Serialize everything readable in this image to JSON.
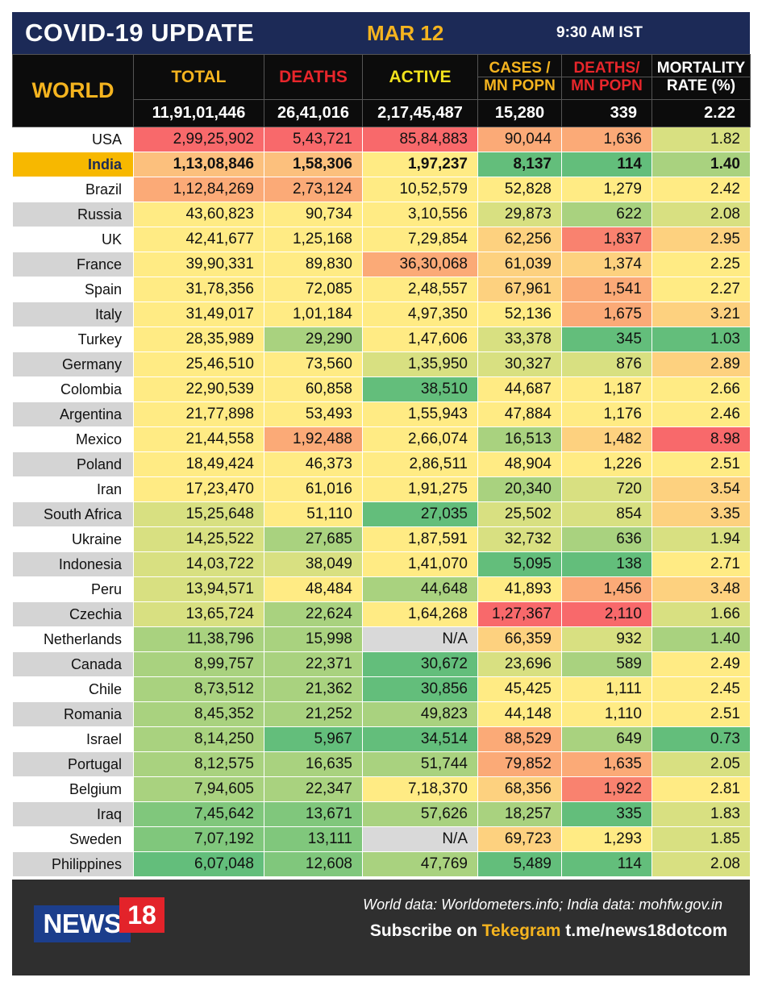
{
  "header": {
    "title": "COVID-19 UPDATE",
    "date": "MAR 12",
    "time": "9:30 AM IST"
  },
  "columns": {
    "region": "WORLD",
    "total": "TOTAL",
    "deaths": "DEATHS",
    "active": "ACTIVE",
    "cases_mn_l1": "CASES /",
    "cases_mn_l2": "MN POPN",
    "deaths_mn_l1": "DEATHS/",
    "deaths_mn_l2": "MN POPN",
    "mortality_l1": "MORTALITY",
    "mortality_l2": "RATE (%)"
  },
  "world": {
    "total": "11,91,01,446",
    "deaths": "26,41,016",
    "active": "2,17,45,487",
    "cases_mn": "15,280",
    "deaths_mn": "339",
    "mortality": "2.22"
  },
  "colors": {
    "red": "#f8696b",
    "orange": "#fbaa77",
    "yellow": "#ffeb84",
    "lime": "#d8e081",
    "lightgreen": "#a3d07f",
    "green": "#63be7b",
    "na": "#d9d9d9",
    "india_highlight": "#f7b800",
    "title_bg": "#1c2a57"
  },
  "rows": [
    {
      "country": "USA",
      "total": "2,99,25,902",
      "deaths": "5,43,721",
      "active": "85,84,883",
      "cases_mn": "90,044",
      "deaths_mn": "1,636",
      "mortality": "1.82",
      "c": [
        "red",
        "red",
        "red",
        "orange",
        "orange",
        "lime"
      ]
    },
    {
      "country": "India",
      "total": "1,13,08,846",
      "deaths": "1,58,306",
      "active": "1,97,237",
      "cases_mn": "8,137",
      "deaths_mn": "114",
      "mortality": "1.40",
      "c": [
        "orange2",
        "orange2",
        "yellow",
        "green",
        "green",
        "lightgreen"
      ]
    },
    {
      "country": "Brazil",
      "total": "1,12,84,269",
      "deaths": "2,73,124",
      "active": "10,52,579",
      "cases_mn": "52,828",
      "deaths_mn": "1,279",
      "mortality": "2.42",
      "c": [
        "orange",
        "orange",
        "yellow",
        "yellow",
        "yellow",
        "yellow"
      ]
    },
    {
      "country": "Russia",
      "total": "43,60,823",
      "deaths": "90,734",
      "active": "3,10,556",
      "cases_mn": "29,873",
      "deaths_mn": "622",
      "mortality": "2.08",
      "c": [
        "yellow",
        "yellow",
        "yellow",
        "lime",
        "lightgreen",
        "lime"
      ]
    },
    {
      "country": "UK",
      "total": "42,41,677",
      "deaths": "1,25,168",
      "active": "7,29,854",
      "cases_mn": "62,256",
      "deaths_mn": "1,837",
      "mortality": "2.95",
      "c": [
        "yellow",
        "yellow",
        "yellow",
        "yellow2",
        "red2",
        "yellow2"
      ]
    },
    {
      "country": "France",
      "total": "39,90,331",
      "deaths": "89,830",
      "active": "36,30,068",
      "cases_mn": "61,039",
      "deaths_mn": "1,374",
      "mortality": "2.25",
      "c": [
        "yellow",
        "yellow",
        "orange",
        "yellow2",
        "yellow2",
        "yellow"
      ]
    },
    {
      "country": "Spain",
      "total": "31,78,356",
      "deaths": "72,085",
      "active": "2,48,557",
      "cases_mn": "67,961",
      "deaths_mn": "1,541",
      "mortality": "2.27",
      "c": [
        "yellow",
        "yellow",
        "yellow",
        "yellow2",
        "orange",
        "yellow"
      ]
    },
    {
      "country": "Italy",
      "total": "31,49,017",
      "deaths": "1,01,184",
      "active": "4,97,350",
      "cases_mn": "52,136",
      "deaths_mn": "1,675",
      "mortality": "3.21",
      "c": [
        "yellow",
        "yellow",
        "yellow",
        "yellow",
        "orange",
        "yellow2"
      ]
    },
    {
      "country": "Turkey",
      "total": "28,35,989",
      "deaths": "29,290",
      "active": "1,47,606",
      "cases_mn": "33,378",
      "deaths_mn": "345",
      "mortality": "1.03",
      "c": [
        "yellow",
        "lightgreen",
        "yellow",
        "lime",
        "green",
        "green"
      ]
    },
    {
      "country": "Germany",
      "total": "25,46,510",
      "deaths": "73,560",
      "active": "1,35,950",
      "cases_mn": "30,327",
      "deaths_mn": "876",
      "mortality": "2.89",
      "c": [
        "yellow",
        "yellow",
        "lime",
        "lime",
        "lime",
        "yellow2"
      ]
    },
    {
      "country": "Colombia",
      "total": "22,90,539",
      "deaths": "60,858",
      "active": "38,510",
      "cases_mn": "44,687",
      "deaths_mn": "1,187",
      "mortality": "2.66",
      "c": [
        "yellow",
        "yellow",
        "green",
        "yellow",
        "yellow",
        "yellow"
      ]
    },
    {
      "country": "Argentina",
      "total": "21,77,898",
      "deaths": "53,493",
      "active": "1,55,943",
      "cases_mn": "47,884",
      "deaths_mn": "1,176",
      "mortality": "2.46",
      "c": [
        "yellow",
        "yellow",
        "yellow",
        "yellow",
        "yellow",
        "yellow"
      ]
    },
    {
      "country": "Mexico",
      "total": "21,44,558",
      "deaths": "1,92,488",
      "active": "2,66,074",
      "cases_mn": "16,513",
      "deaths_mn": "1,482",
      "mortality": "8.98",
      "c": [
        "yellow",
        "orange",
        "yellow",
        "lightgreen",
        "yellow2",
        "red"
      ]
    },
    {
      "country": "Poland",
      "total": "18,49,424",
      "deaths": "46,373",
      "active": "2,86,511",
      "cases_mn": "48,904",
      "deaths_mn": "1,226",
      "mortality": "2.51",
      "c": [
        "yellow",
        "yellow",
        "yellow",
        "yellow",
        "yellow",
        "yellow"
      ]
    },
    {
      "country": "Iran",
      "total": "17,23,470",
      "deaths": "61,016",
      "active": "1,91,275",
      "cases_mn": "20,340",
      "deaths_mn": "720",
      "mortality": "3.54",
      "c": [
        "yellow",
        "yellow",
        "yellow",
        "lightgreen",
        "lime",
        "yellow2"
      ]
    },
    {
      "country": "South Africa",
      "total": "15,25,648",
      "deaths": "51,110",
      "active": "27,035",
      "cases_mn": "25,502",
      "deaths_mn": "854",
      "mortality": "3.35",
      "c": [
        "lime",
        "yellow",
        "green",
        "lime",
        "lime",
        "yellow2"
      ]
    },
    {
      "country": "Ukraine",
      "total": "14,25,522",
      "deaths": "27,685",
      "active": "1,87,591",
      "cases_mn": "32,732",
      "deaths_mn": "636",
      "mortality": "1.94",
      "c": [
        "lime",
        "lightgreen",
        "yellow",
        "lime",
        "lightgreen",
        "lime"
      ]
    },
    {
      "country": "Indonesia",
      "total": "14,03,722",
      "deaths": "38,049",
      "active": "1,41,070",
      "cases_mn": "5,095",
      "deaths_mn": "138",
      "mortality": "2.71",
      "c": [
        "lime",
        "lime",
        "yellow",
        "green",
        "green",
        "yellow"
      ]
    },
    {
      "country": "Peru",
      "total": "13,94,571",
      "deaths": "48,484",
      "active": "44,648",
      "cases_mn": "41,893",
      "deaths_mn": "1,456",
      "mortality": "3.48",
      "c": [
        "lime",
        "yellow",
        "lightgreen",
        "yellow",
        "orange",
        "yellow2"
      ]
    },
    {
      "country": "Czechia",
      "total": "13,65,724",
      "deaths": "22,624",
      "active": "1,64,268",
      "cases_mn": "1,27,367",
      "deaths_mn": "2,110",
      "mortality": "1.66",
      "c": [
        "lime",
        "lightgreen",
        "yellow",
        "red",
        "red",
        "lime"
      ]
    },
    {
      "country": "Netherlands",
      "total": "11,38,796",
      "deaths": "15,998",
      "active": "N/A",
      "cases_mn": "66,359",
      "deaths_mn": "932",
      "mortality": "1.40",
      "c": [
        "lightgreen",
        "lightgreen",
        "na",
        "yellow2",
        "lime",
        "lightgreen"
      ]
    },
    {
      "country": "Canada",
      "total": "8,99,757",
      "deaths": "22,371",
      "active": "30,672",
      "cases_mn": "23,696",
      "deaths_mn": "589",
      "mortality": "2.49",
      "c": [
        "lightgreen",
        "lightgreen",
        "green",
        "lime",
        "lightgreen",
        "yellow"
      ]
    },
    {
      "country": "Chile",
      "total": "8,73,512",
      "deaths": "21,362",
      "active": "30,856",
      "cases_mn": "45,425",
      "deaths_mn": "1,111",
      "mortality": "2.45",
      "c": [
        "lightgreen",
        "lightgreen",
        "green",
        "yellow",
        "yellow",
        "yellow"
      ]
    },
    {
      "country": "Romania",
      "total": "8,45,352",
      "deaths": "21,252",
      "active": "49,823",
      "cases_mn": "44,148",
      "deaths_mn": "1,110",
      "mortality": "2.51",
      "c": [
        "lightgreen",
        "lightgreen",
        "lightgreen",
        "yellow",
        "yellow",
        "yellow"
      ]
    },
    {
      "country": "Israel",
      "total": "8,14,250",
      "deaths": "5,967",
      "active": "34,514",
      "cases_mn": "88,529",
      "deaths_mn": "649",
      "mortality": "0.73",
      "c": [
        "lightgreen",
        "green",
        "green",
        "orange",
        "lightgreen",
        "green"
      ]
    },
    {
      "country": "Portugal",
      "total": "8,12,575",
      "deaths": "16,635",
      "active": "51,744",
      "cases_mn": "79,852",
      "deaths_mn": "1,635",
      "mortality": "2.05",
      "c": [
        "lightgreen",
        "lightgreen",
        "lightgreen",
        "orange",
        "orange",
        "lime"
      ]
    },
    {
      "country": "Belgium",
      "total": "7,94,605",
      "deaths": "22,347",
      "active": "7,18,370",
      "cases_mn": "68,356",
      "deaths_mn": "1,922",
      "mortality": "2.81",
      "c": [
        "lightgreen",
        "lightgreen",
        "yellow",
        "yellow2",
        "red2",
        "yellow"
      ]
    },
    {
      "country": "Iraq",
      "total": "7,45,642",
      "deaths": "13,671",
      "active": "57,626",
      "cases_mn": "18,257",
      "deaths_mn": "335",
      "mortality": "1.83",
      "c": [
        "green2",
        "green2",
        "lightgreen",
        "lightgreen",
        "green",
        "lime"
      ]
    },
    {
      "country": "Sweden",
      "total": "7,07,192",
      "deaths": "13,111",
      "active": "N/A",
      "cases_mn": "69,723",
      "deaths_mn": "1,293",
      "mortality": "1.85",
      "c": [
        "green2",
        "green2",
        "na",
        "yellow2",
        "yellow",
        "lime"
      ]
    },
    {
      "country": "Philippines",
      "total": "6,07,048",
      "deaths": "12,608",
      "active": "47,769",
      "cases_mn": "5,489",
      "deaths_mn": "114",
      "mortality": "2.08",
      "c": [
        "green",
        "green2",
        "lightgreen",
        "green",
        "green",
        "lime"
      ]
    }
  ],
  "footer": {
    "logo_word": "NEWS",
    "logo_number": "18",
    "sources": "World data: Worldometers.info; India data: mohfw.gov.in",
    "subscribe_prefix": "Subscribe on ",
    "subscribe_platform": "Tekegram",
    "subscribe_link": " t.me/news18dotcom"
  }
}
